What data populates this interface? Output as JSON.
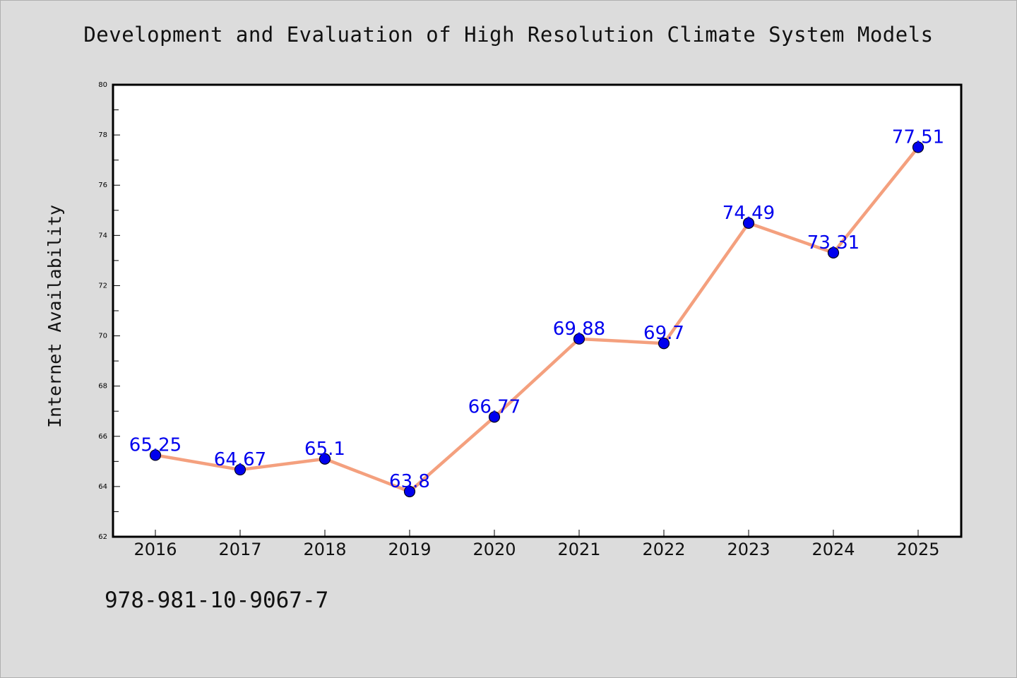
{
  "chart_data": {
    "type": "line",
    "title": "Development and Evaluation of High Resolution Climate System Models",
    "xlabel": "",
    "ylabel": "Internet Availability",
    "categories": [
      "2016",
      "2017",
      "2018",
      "2019",
      "2020",
      "2021",
      "2022",
      "2023",
      "2024",
      "2025"
    ],
    "series": [
      {
        "values": [
          65.25,
          64.67,
          65.1,
          63.8,
          66.77,
          69.88,
          69.7,
          74.49,
          73.31,
          77.51
        ],
        "labels": [
          "65.25",
          "64.67",
          "65.1",
          "63.8",
          "66.77",
          "69.88",
          "69.7",
          "74.49",
          "73.31",
          "77.51"
        ]
      }
    ],
    "ylim": [
      62,
      80
    ],
    "yticks": [
      "62",
      "64",
      "66",
      "68",
      "70",
      "72",
      "74",
      "76",
      "78",
      "80"
    ],
    "grid": false,
    "legend": "none",
    "colors": {
      "line": "#f4a07e",
      "marker": "#0000ee",
      "label": "#0000ee",
      "background": "#dcdcdc",
      "plot_area": "#ffffff"
    }
  },
  "footer": {
    "isbn": "978-981-10-9067-7"
  }
}
